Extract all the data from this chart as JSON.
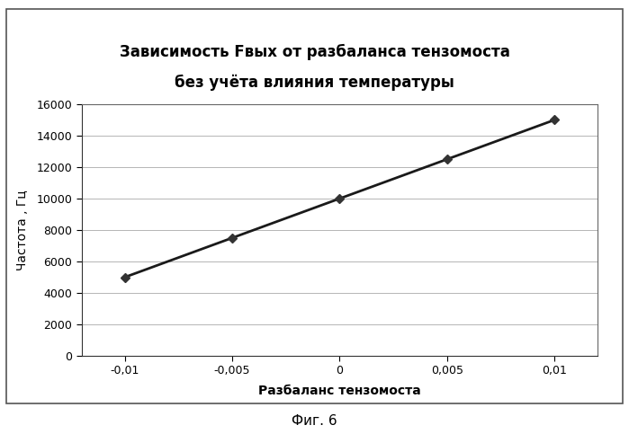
{
  "title_line1": "Зависимость Fвых от разбаланса тензомоста",
  "title_line2": "без учёта влияния температуры",
  "xlabel": "Разбаланс тензомоста",
  "ylabel": "Частота , Гц",
  "x_data": [
    -0.01,
    -0.005,
    0,
    0.005,
    0.01
  ],
  "y_data": [
    5000,
    7500,
    10000,
    12500,
    15000
  ],
  "xlim": [
    -0.012,
    0.012
  ],
  "ylim": [
    0,
    16000
  ],
  "yticks": [
    0,
    2000,
    4000,
    6000,
    8000,
    10000,
    12000,
    14000,
    16000
  ],
  "xticks": [
    -0.01,
    -0.005,
    0,
    0.005,
    0.01
  ],
  "line_color": "#1a1a1a",
  "marker_color": "#333333",
  "marker_style": "D",
  "marker_size": 5,
  "line_width": 2.0,
  "background_color": "#ffffff",
  "grid_color": "#aaaaaa",
  "title_fontsize": 12,
  "label_fontsize": 10,
  "tick_fontsize": 9,
  "caption": "Фиг. 6",
  "caption_fontsize": 11,
  "border_color": "#555555"
}
